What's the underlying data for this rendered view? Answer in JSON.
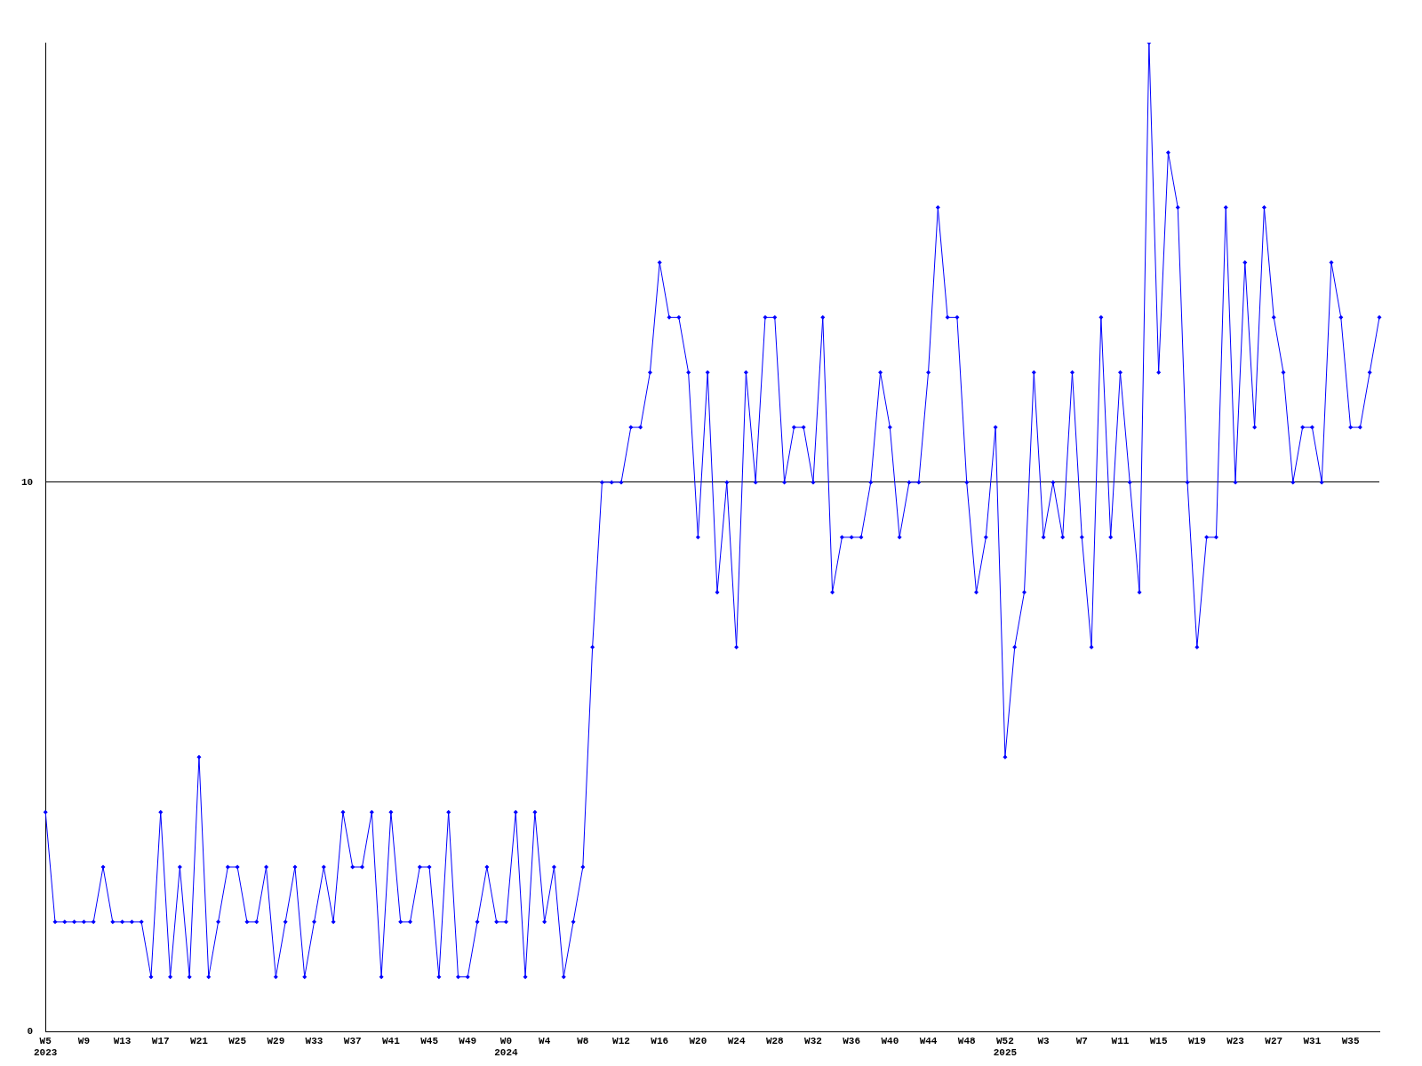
{
  "chart_data": {
    "type": "line",
    "categories": [
      "W5\n2023",
      null,
      null,
      null,
      "W9",
      null,
      null,
      null,
      "W13",
      null,
      null,
      null,
      "W17",
      null,
      null,
      null,
      "W21",
      null,
      null,
      null,
      "W25",
      null,
      null,
      null,
      "W29",
      null,
      null,
      null,
      "W33",
      null,
      null,
      null,
      "W37",
      null,
      null,
      null,
      "W41",
      null,
      null,
      null,
      "W45",
      null,
      null,
      null,
      "W49",
      null,
      null,
      null,
      "W0\n2024",
      null,
      null,
      null,
      "W4",
      null,
      null,
      null,
      "W8",
      null,
      null,
      null,
      "W12",
      null,
      null,
      null,
      "W16",
      null,
      null,
      null,
      "W20",
      null,
      null,
      null,
      "W24",
      null,
      null,
      null,
      "W28",
      null,
      null,
      null,
      "W32",
      null,
      null,
      null,
      "W36",
      null,
      null,
      null,
      "W40",
      null,
      null,
      null,
      "W44",
      null,
      null,
      null,
      "W48",
      null,
      null,
      null,
      "W52\n2025",
      null,
      null,
      null,
      "W3",
      null,
      null,
      null,
      "W7",
      null,
      null,
      null,
      "W11",
      null,
      null,
      null,
      "W15",
      null,
      null,
      null,
      "W19",
      null,
      null,
      null,
      "W23",
      null,
      null,
      null,
      "W27",
      null,
      null,
      null,
      "W31",
      null,
      null,
      null,
      "W35",
      null,
      null,
      null
    ],
    "series": [
      {
        "color": "#0000ff",
        "values": [
          4,
          2,
          2,
          2,
          2,
          2,
          3,
          2,
          2,
          2,
          2,
          1,
          4,
          1,
          3,
          1,
          5,
          1,
          2,
          3,
          3,
          2,
          2,
          3,
          1,
          2,
          3,
          1,
          2,
          3,
          2,
          4,
          3,
          3,
          4,
          1,
          4,
          2,
          2,
          3,
          3,
          1,
          4,
          1,
          1,
          2,
          3,
          2,
          2,
          4,
          1,
          4,
          2,
          3,
          1,
          2,
          3,
          7,
          10,
          10,
          10,
          11,
          11,
          12,
          14,
          13,
          13,
          12,
          9,
          12,
          8,
          10,
          7,
          12,
          10,
          13,
          13,
          10,
          11,
          11,
          10,
          13,
          8,
          9,
          9,
          9,
          10,
          12,
          11,
          9,
          10,
          10,
          12,
          15,
          13,
          13,
          10,
          8,
          9,
          11,
          5,
          7,
          8,
          12,
          9,
          10,
          9,
          12,
          9,
          7,
          13,
          9,
          12,
          10,
          8,
          18,
          12,
          16,
          15,
          10,
          7,
          9,
          9,
          15,
          10,
          14,
          11,
          15,
          13,
          12,
          10,
          11,
          11,
          10,
          14,
          13,
          11,
          11,
          12,
          13
        ]
      }
    ],
    "ylim": [
      0,
      18
    ],
    "yticks": [
      0,
      10
    ],
    "grid": "y",
    "marker": "diamond",
    "line_style": "solid",
    "legend": false
  }
}
